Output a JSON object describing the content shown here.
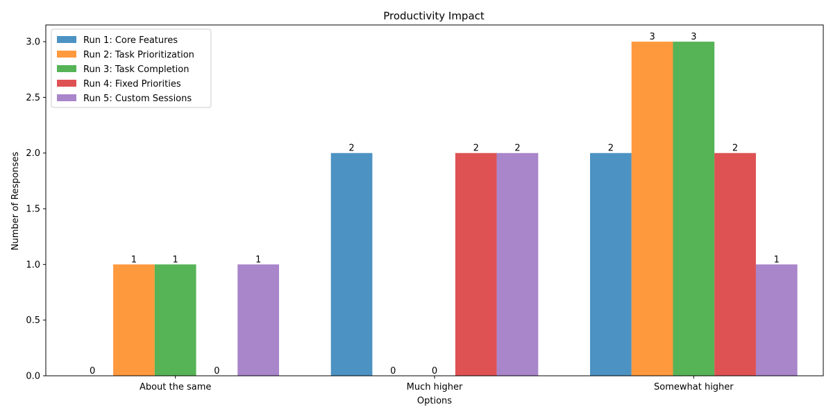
{
  "chart_data": {
    "type": "bar",
    "title": "Productivity Impact",
    "xlabel": "Options",
    "ylabel": "Number of Responses",
    "categories": [
      "About the same",
      "Much higher",
      "Somewhat higher"
    ],
    "series": [
      {
        "name": "Run 1: Core Features",
        "color": "#1f77b4",
        "values": [
          0,
          2,
          2
        ]
      },
      {
        "name": "Run 2: Task Prioritization",
        "color": "#ff7f0e",
        "values": [
          1,
          0,
          3
        ]
      },
      {
        "name": "Run 3: Task Completion",
        "color": "#2ca02c",
        "values": [
          1,
          0,
          3
        ]
      },
      {
        "name": "Run 4: Fixed Priorities",
        "color": "#d62728",
        "values": [
          0,
          2,
          2
        ]
      },
      {
        "name": "Run 5: Custom Sessions",
        "color": "#9467bd",
        "values": [
          1,
          2,
          1
        ]
      }
    ],
    "ylim": [
      0,
      3.15
    ],
    "yticks": [
      "0.0",
      "0.5",
      "1.0",
      "1.5",
      "2.0",
      "2.5",
      "3.0"
    ],
    "bar_opacity": 0.8,
    "grid": false,
    "legend_position": "top-left"
  }
}
